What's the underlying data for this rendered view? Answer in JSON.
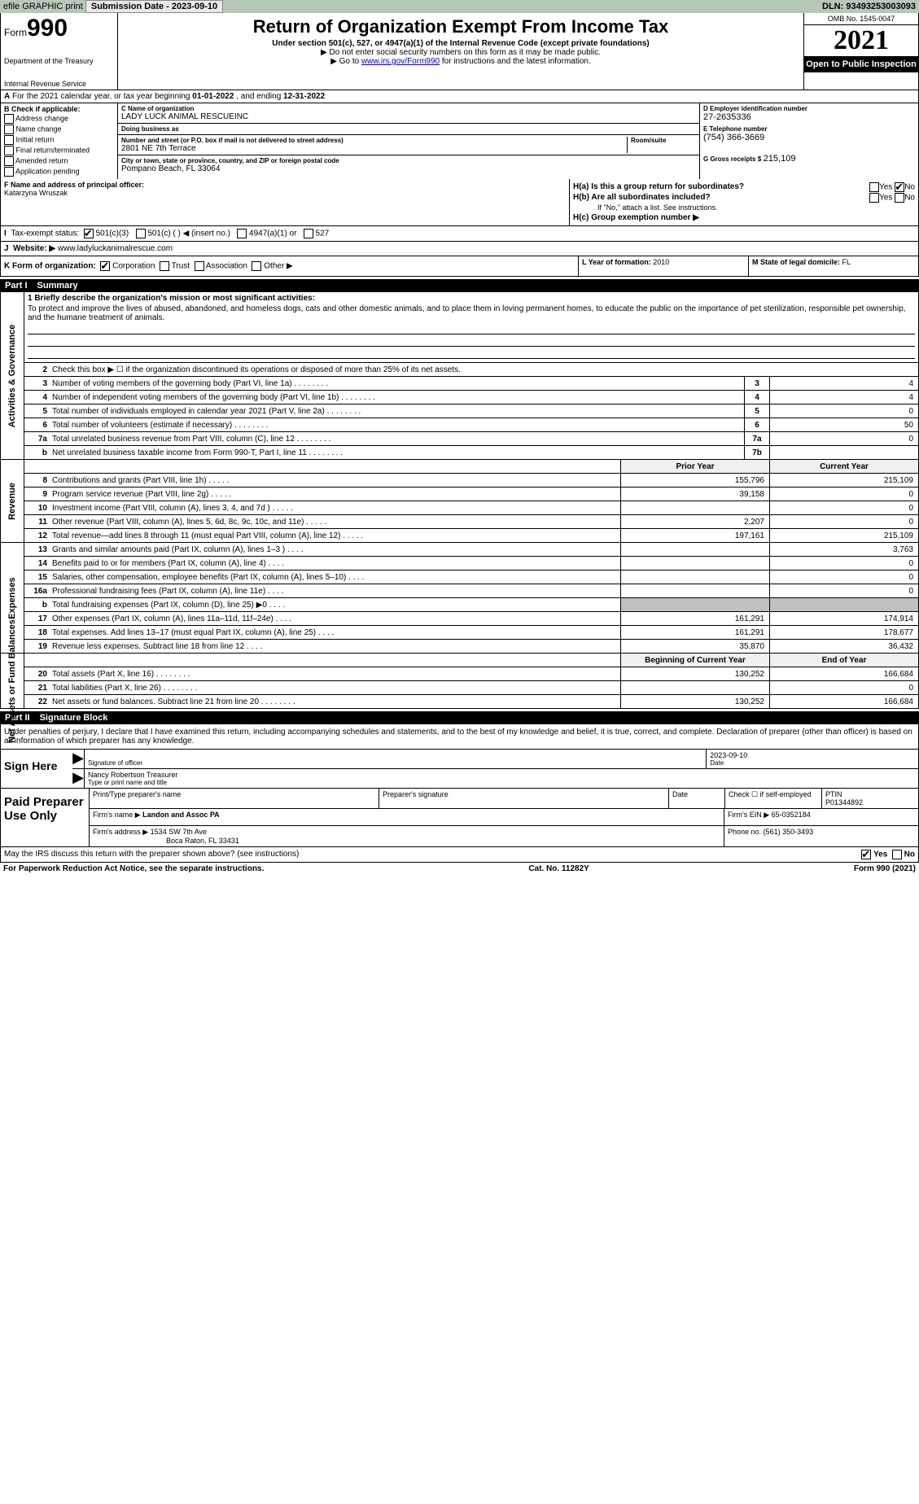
{
  "topbar": {
    "efile": "efile GRAPHIC print",
    "submission": "Submission Date - 2023-09-10",
    "dln_label": "DLN:",
    "dln": "93493253003093"
  },
  "header": {
    "form_word": "Form",
    "form_num": "990",
    "dept": "Department of the Treasury",
    "irs": "Internal Revenue Service",
    "title": "Return of Organization Exempt From Income Tax",
    "sub": "Under section 501(c), 527, or 4947(a)(1) of the Internal Revenue Code (except private foundations)",
    "note1": "▶ Do not enter social security numbers on this form as it may be made public.",
    "note2_pre": "▶ Go to ",
    "note2_link": "www.irs.gov/Form990",
    "note2_post": " for instructions and the latest information.",
    "omb": "OMB No. 1545-0047",
    "year": "2021",
    "open": "Open to Public Inspection"
  },
  "line_a": {
    "text_pre": "For the 2021 calendar year, or tax year beginning ",
    "begin": "01-01-2022",
    "mid": " , and ending ",
    "end": "12-31-2022"
  },
  "block_b": {
    "label": "B Check if applicable:",
    "items": [
      "Address change",
      "Name change",
      "Initial return",
      "Final return/terminated",
      "Amended return",
      "Application pending"
    ]
  },
  "block_c": {
    "name_label": "C Name of organization",
    "name": "LADY LUCK ANIMAL RESCUEINC",
    "dba_label": "Doing business as",
    "dba": "",
    "addr_label": "Number and street (or P.O. box if mail is not delivered to street address)",
    "room_label": "Room/suite",
    "addr": "2801 NE 7th Terrace",
    "city_label": "City or town, state or province, country, and ZIP or foreign postal code",
    "city": "Pompano Beach, FL  33064"
  },
  "block_d": {
    "label": "D Employer identification number",
    "ein": "27-2635336",
    "e_label": "E Telephone number",
    "phone": "(754) 366-3669",
    "g_label": "G Gross receipts $",
    "gross": "215,109"
  },
  "block_f": {
    "label": "F  Name and address of principal officer:",
    "name": "Katarzyna Wruszak"
  },
  "block_h": {
    "a_label": "H(a)  Is this a group return for subordinates?",
    "b_label": "H(b)  Are all subordinates included?",
    "b_note": "If \"No,\" attach a list. See instructions.",
    "c_label": "H(c)  Group exemption number ▶",
    "yes": "Yes",
    "no": "No"
  },
  "line_i": {
    "label": "Tax-exempt status:",
    "opts": [
      "501(c)(3)",
      "501(c) (  ) ◀ (insert no.)",
      "4947(a)(1) or",
      "527"
    ]
  },
  "line_j": {
    "label": "Website: ▶",
    "val": "www.ladyluckanimalrescue.com"
  },
  "line_k": {
    "label": "K Form of organization:",
    "opts": [
      "Corporation",
      "Trust",
      "Association",
      "Other ▶"
    ],
    "l_label": "L Year of formation:",
    "l_val": "2010",
    "m_label": "M State of legal domicile:",
    "m_val": "FL"
  },
  "part1": {
    "num": "Part I",
    "title": "Summary"
  },
  "governance": {
    "vert": "Activities & Governance",
    "l1_label": "1 Briefly describe the organization's mission or most significant activities:",
    "l1_text": "To protect and improve the lives of abused, abandoned, and homeless dogs, cats and other domestic animals, and to place them in loving permanent homes, to educate the public on the importance of pet sterilization, responsible pet ownership, and the humane treatment of animals.",
    "l2": "Check this box ▶ ☐ if the organization discontinued its operations or disposed of more than 25% of its net assets.",
    "rows": [
      {
        "n": "3",
        "d": "Number of voting members of the governing body (Part VI, line 1a)",
        "box": "3",
        "v": "4"
      },
      {
        "n": "4",
        "d": "Number of independent voting members of the governing body (Part VI, line 1b)",
        "box": "4",
        "v": "4"
      },
      {
        "n": "5",
        "d": "Total number of individuals employed in calendar year 2021 (Part V, line 2a)",
        "box": "5",
        "v": "0"
      },
      {
        "n": "6",
        "d": "Total number of volunteers (estimate if necessary)",
        "box": "6",
        "v": "50"
      },
      {
        "n": "7a",
        "d": "Total unrelated business revenue from Part VIII, column (C), line 12",
        "box": "7a",
        "v": "0"
      },
      {
        "n": "b",
        "d": "Net unrelated business taxable income from Form 990-T, Part I, line 11",
        "box": "7b",
        "v": ""
      }
    ]
  },
  "revenue": {
    "vert": "Revenue",
    "header_prior": "Prior Year",
    "header_current": "Current Year",
    "rows": [
      {
        "n": "8",
        "d": "Contributions and grants (Part VIII, line 1h)",
        "p": "155,796",
        "c": "215,109"
      },
      {
        "n": "9",
        "d": "Program service revenue (Part VIII, line 2g)",
        "p": "39,158",
        "c": "0"
      },
      {
        "n": "10",
        "d": "Investment income (Part VIII, column (A), lines 3, 4, and 7d )",
        "p": "",
        "c": "0"
      },
      {
        "n": "11",
        "d": "Other revenue (Part VIII, column (A), lines 5, 6d, 8c, 9c, 10c, and 11e)",
        "p": "2,207",
        "c": "0"
      },
      {
        "n": "12",
        "d": "Total revenue—add lines 8 through 11 (must equal Part VIII, column (A), line 12)",
        "p": "197,161",
        "c": "215,109"
      }
    ]
  },
  "expenses": {
    "vert": "Expenses",
    "rows": [
      {
        "n": "13",
        "d": "Grants and similar amounts paid (Part IX, column (A), lines 1–3 )",
        "p": "",
        "c": "3,763"
      },
      {
        "n": "14",
        "d": "Benefits paid to or for members (Part IX, column (A), line 4)",
        "p": "",
        "c": "0"
      },
      {
        "n": "15",
        "d": "Salaries, other compensation, employee benefits (Part IX, column (A), lines 5–10)",
        "p": "",
        "c": "0"
      },
      {
        "n": "16a",
        "d": "Professional fundraising fees (Part IX, column (A), line 11e)",
        "p": "",
        "c": "0"
      },
      {
        "n": "b",
        "d": "Total fundraising expenses (Part IX, column (D), line 25) ▶0",
        "p": "shade",
        "c": "shade"
      },
      {
        "n": "17",
        "d": "Other expenses (Part IX, column (A), lines 11a–11d, 11f–24e)",
        "p": "161,291",
        "c": "174,914"
      },
      {
        "n": "18",
        "d": "Total expenses. Add lines 13–17 (must equal Part IX, column (A), line 25)",
        "p": "161,291",
        "c": "178,677"
      },
      {
        "n": "19",
        "d": "Revenue less expenses. Subtract line 18 from line 12",
        "p": "35,870",
        "c": "36,432"
      }
    ]
  },
  "netassets": {
    "vert": "Net Assets or Fund Balances",
    "header_begin": "Beginning of Current Year",
    "header_end": "End of Year",
    "rows": [
      {
        "n": "20",
        "d": "Total assets (Part X, line 16)",
        "p": "130,252",
        "c": "166,684"
      },
      {
        "n": "21",
        "d": "Total liabilities (Part X, line 26)",
        "p": "",
        "c": "0"
      },
      {
        "n": "22",
        "d": "Net assets or fund balances. Subtract line 21 from line 20",
        "p": "130,252",
        "c": "166,684"
      }
    ]
  },
  "part2": {
    "num": "Part II",
    "title": "Signature Block"
  },
  "sig": {
    "intro": "Under penalties of perjury, I declare that I have examined this return, including accompanying schedules and statements, and to the best of my knowledge and belief, it is true, correct, and complete. Declaration of preparer (other than officer) is based on all information of which preparer has any knowledge.",
    "sign_here": "Sign Here",
    "sig_officer": "Signature of officer",
    "date": "Date",
    "date_val": "2023-09-10",
    "name": "Nancy Robertson Treasurer",
    "name_label": "Type or print name and title"
  },
  "prep": {
    "label": "Paid Preparer Use Only",
    "h1": "Print/Type preparer's name",
    "h2": "Preparer's signature",
    "h3": "Date",
    "h4_chk": "Check ☐ if self-employed",
    "h5": "PTIN",
    "ptin": "P01344892",
    "firm_name_label": "Firm's name    ▶",
    "firm_name": "Landon and Assoc PA",
    "firm_ein_label": "Firm's EIN ▶",
    "firm_ein": "65-0352184",
    "firm_addr_label": "Firm's address ▶",
    "firm_addr1": "1534 SW 7th Ave",
    "firm_addr2": "Boca Raton, FL  33431",
    "phone_label": "Phone no.",
    "phone": "(561) 350-3493"
  },
  "may_irs": {
    "text": "May the IRS discuss this return with the preparer shown above? (see instructions)",
    "yes": "Yes",
    "no": "No"
  },
  "footer": {
    "left": "For Paperwork Reduction Act Notice, see the separate instructions.",
    "mid": "Cat. No. 11282Y",
    "right": "Form 990 (2021)"
  }
}
